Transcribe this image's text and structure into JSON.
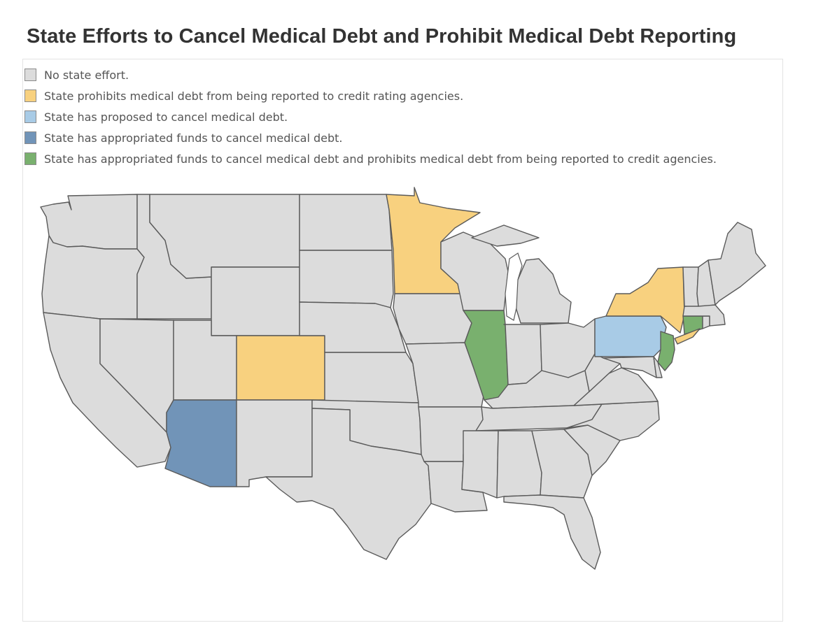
{
  "title": "State Efforts to Cancel Medical Debt and Prohibit Medical Debt Reporting",
  "legend": [
    {
      "key": "none",
      "label": "No state effort.",
      "color": "#dcdcdc"
    },
    {
      "key": "prohibit",
      "label": "State prohibits medical debt from being reported to credit rating agencies.",
      "color": "#f8d17f"
    },
    {
      "key": "proposed",
      "label": "State has proposed to cancel medical debt.",
      "color": "#a8cbe6"
    },
    {
      "key": "appropriated",
      "label": "State has appropriated funds to cancel medical debt.",
      "color": "#7194b8"
    },
    {
      "key": "both",
      "label": "State has appropriated funds to cancel medical debt and prohibits medical debt from being reported to credit agencies.",
      "color": "#79b06e"
    }
  ],
  "map": {
    "region": "Contiguous United States",
    "states": [
      {
        "name": "Minnesota",
        "status": "prohibit"
      },
      {
        "name": "Colorado",
        "status": "prohibit"
      },
      {
        "name": "New York",
        "status": "prohibit"
      },
      {
        "name": "Pennsylvania",
        "status": "proposed"
      },
      {
        "name": "Arizona",
        "status": "appropriated"
      },
      {
        "name": "Illinois",
        "status": "both"
      },
      {
        "name": "New Jersey",
        "status": "both"
      },
      {
        "name": "Connecticut",
        "status": "both"
      }
    ],
    "default_status": "none"
  }
}
